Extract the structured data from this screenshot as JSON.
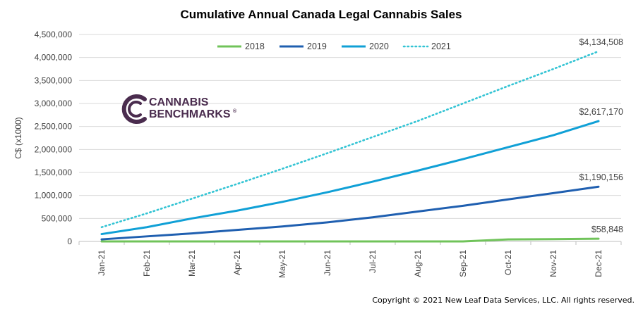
{
  "chart_data": {
    "type": "line",
    "title": "Cumulative Annual Canada Legal Cannabis Sales",
    "ylabel": "C$ (x1000)",
    "xlabel": "",
    "categories": [
      "Jan-21",
      "Feb-21",
      "Mar-21",
      "Apr-21",
      "May-21",
      "Jun-21",
      "Jul-21",
      "Aug-21",
      "Sep-21",
      "Oct-21",
      "Nov-21",
      "Dec-21"
    ],
    "ylim": [
      0,
      4500000
    ],
    "yticks": [
      0,
      500000,
      1000000,
      1500000,
      2000000,
      2500000,
      3000000,
      3500000,
      4000000,
      4500000
    ],
    "ytick_labels": [
      "0",
      "500,000",
      "1,000,000",
      "1,500,000",
      "2,000,000",
      "2,500,000",
      "3,000,000",
      "3,500,000",
      "4,000,000",
      "4,500,000"
    ],
    "grid": true,
    "legend_position": "top",
    "series": [
      {
        "name": "2018",
        "color": "#70c35a",
        "style": "solid",
        "values": [
          0,
          0,
          0,
          0,
          0,
          0,
          0,
          0,
          0,
          44000,
          50000,
          58848
        ],
        "end_label": "$58,848"
      },
      {
        "name": "2019",
        "color": "#1f5fb0",
        "style": "solid",
        "values": [
          45000,
          110000,
          175000,
          250000,
          325000,
          415000,
          525000,
          650000,
          775000,
          915000,
          1050000,
          1190156
        ],
        "end_label": "$1,190,156"
      },
      {
        "name": "2020",
        "color": "#10a0d6",
        "style": "solid",
        "values": [
          160000,
          310000,
          500000,
          670000,
          860000,
          1070000,
          1300000,
          1540000,
          1790000,
          2050000,
          2310000,
          2617170
        ],
        "end_label": "$2,617,170"
      },
      {
        "name": "2021",
        "color": "#33c4d4",
        "style": "dotted",
        "values": [
          310000,
          610000,
          930000,
          1250000,
          1580000,
          1920000,
          2270000,
          2620000,
          3000000,
          3380000,
          3750000,
          4134508
        ],
        "end_label": "$4,134,508"
      }
    ]
  },
  "logo": {
    "line1": "CANNABIS",
    "line2": "BENCHMARKS",
    "mark": "®"
  },
  "copyright": "Copyright © 2021 New Leaf Data Services, LLC.  All rights reserved."
}
